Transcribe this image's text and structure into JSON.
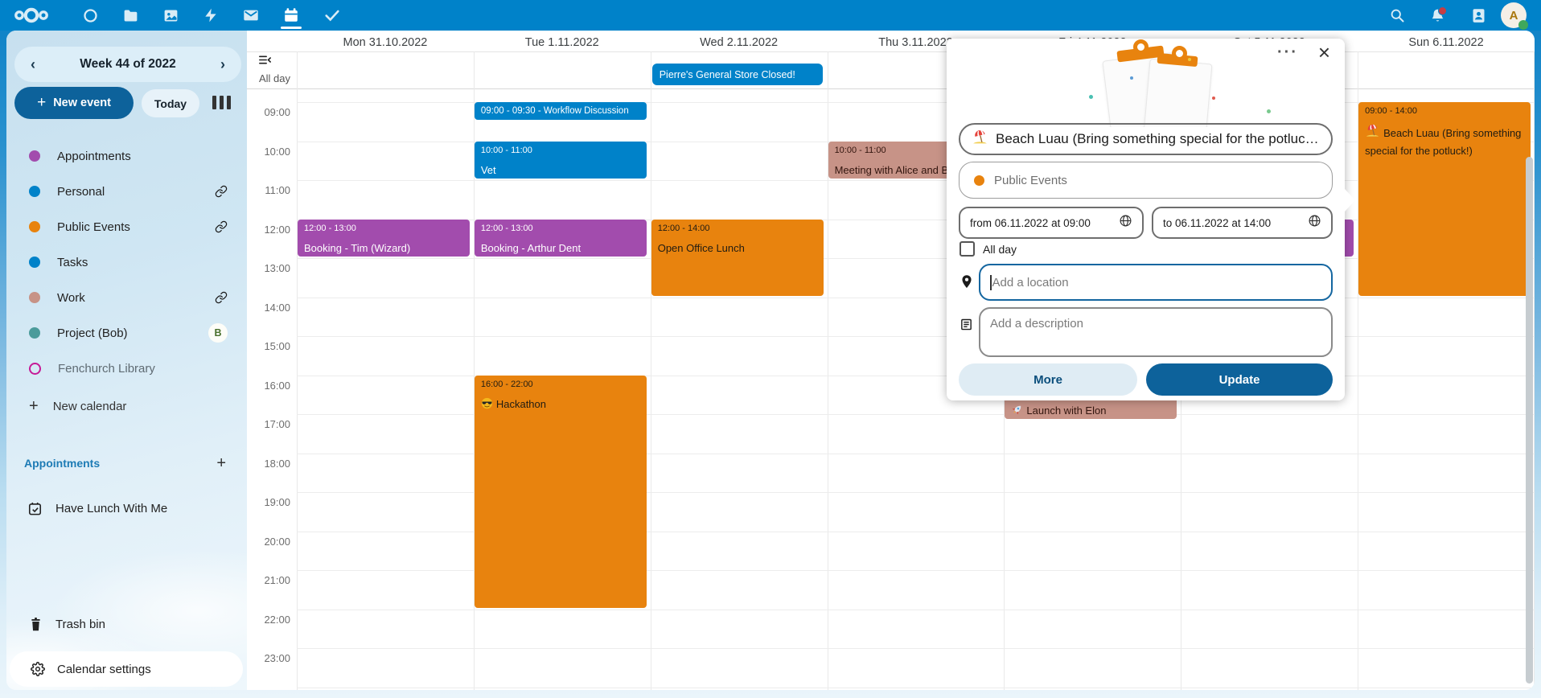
{
  "topbar": {
    "app_icons": [
      "nextcloud-logo",
      "dashboard",
      "files",
      "photos",
      "activity",
      "mail",
      "calendar",
      "tasks"
    ],
    "active_app": "calendar",
    "right_icons": [
      "search",
      "notifications",
      "contacts",
      "avatar"
    ],
    "avatar_letter": "A"
  },
  "sidebar": {
    "week_label": "Week 44 of 2022",
    "prev_week": "‹",
    "next_week": "›",
    "new_event_label": "New event",
    "today_label": "Today",
    "calendars": [
      {
        "name": "Appointments",
        "color": "#a24cad",
        "type": "dot"
      },
      {
        "name": "Personal",
        "color": "#0082c9",
        "type": "dot",
        "shared": true
      },
      {
        "name": "Public Events",
        "color": "#e8830e",
        "type": "dot",
        "shared": true
      },
      {
        "name": "Tasks",
        "color": "#0082c9",
        "type": "dot"
      },
      {
        "name": "Work",
        "color": "#c79387",
        "type": "dot",
        "shared": true
      },
      {
        "name": "Project (Bob)",
        "color": "#4b9b9b",
        "type": "dot",
        "avatar": "B"
      },
      {
        "name": "Fenchurch Library",
        "color": "#c61a96",
        "type": "ring",
        "dim": true
      }
    ],
    "new_calendar_label": "New calendar",
    "section_heading": "Appointments",
    "appointment_configs": [
      "Have Lunch With Me"
    ],
    "trash_label": "Trash bin",
    "settings_label": "Calendar settings"
  },
  "calendar": {
    "allday_label": "All day",
    "day_headers": [
      "Mon 31.10.2022",
      "Tue 1.11.2022",
      "Wed 2.11.2022",
      "Thu 3.11.2022",
      "Fri 4.11.2022",
      "Sat 5.11.2022",
      "Sun 6.11.2022"
    ],
    "time_labels": [
      "09:00",
      "10:00",
      "11:00",
      "12:00",
      "13:00",
      "14:00",
      "15:00",
      "16:00",
      "17:00",
      "18:00",
      "19:00",
      "20:00",
      "21:00",
      "22:00",
      "23:00"
    ],
    "colors": {
      "blue": "#0082c9",
      "purple": "#a24cad",
      "orange": "#e8830e",
      "salmon": "#c79387"
    },
    "allday_events": [
      {
        "day": 2,
        "title": "Pierre's General Store Closed!",
        "color": "blue"
      }
    ],
    "events": [
      {
        "day": 0,
        "start": "12:00",
        "end": "13:00",
        "time": "12:00 - 13:00",
        "title": "Booking - Tim (Wizard)",
        "color": "purple"
      },
      {
        "day": 1,
        "start": "09:00",
        "end": "09:30",
        "time": "09:00 - 09:30",
        "title": "Workflow Discussion",
        "color": "blue",
        "inline": true
      },
      {
        "day": 1,
        "start": "10:00",
        "end": "11:00",
        "time": "10:00 - 11:00",
        "title": "Vet",
        "color": "blue"
      },
      {
        "day": 1,
        "start": "12:00",
        "end": "13:00",
        "time": "12:00 - 13:00",
        "title": "Booking - Arthur Dent",
        "color": "purple"
      },
      {
        "day": 1,
        "start": "16:00",
        "end": "22:00",
        "time": "16:00 - 22:00",
        "title": "Hackathon",
        "icon": "sunglasses-emoji",
        "color": "orange",
        "dark_text": true
      },
      {
        "day": 2,
        "start": "12:00",
        "end": "14:00",
        "time": "12:00 - 14:00",
        "title": "Open Office Lunch",
        "color": "orange",
        "dark_text": true
      },
      {
        "day": 3,
        "start": "10:00",
        "end": "11:00",
        "time": "10:00 - 11:00",
        "title": "Meeting with Alice and Bob",
        "color": "salmon",
        "dark_text": true
      },
      {
        "day": 4,
        "start": "16:10",
        "end": "17:10",
        "time": "16:10 - 17:10",
        "title": "Launch with Elon",
        "icon": "rocket-emoji",
        "color": "salmon",
        "dark_text": true
      },
      {
        "day": 5,
        "start": "12:00",
        "end": "13:00",
        "time": "",
        "title": "",
        "color": "purple"
      },
      {
        "day": 6,
        "start": "09:00",
        "end": "14:00",
        "time": "09:00 - 14:00",
        "title": "Beach Luau (Bring something special for the potluck!)",
        "icon": "beach-emoji",
        "color": "orange",
        "dark_text": true
      }
    ]
  },
  "popup": {
    "title_value": "Beach Luau (Bring something special for the potluck!)",
    "title_icon": "beach-emoji",
    "category_value": "Public Events",
    "category_color": "#e8830e",
    "from_value": "from 06.11.2022 at 09:00",
    "to_value": "to 06.11.2022 at 14:00",
    "allday_label": "All day",
    "allday_checked": false,
    "location_placeholder": "Add a location",
    "description_placeholder": "Add a description",
    "more_label": "More",
    "update_label": "Update"
  }
}
